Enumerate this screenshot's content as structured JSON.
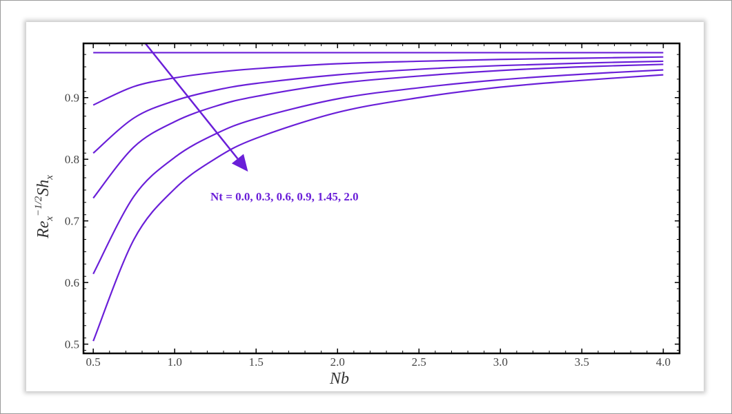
{
  "chart_data": {
    "type": "line",
    "title": "",
    "xlabel": "Nb",
    "ylabel_base": "Re",
    "ylabel_sub1": "x",
    "ylabel_sup": "−1/2",
    "ylabel_mid": "Sh",
    "ylabel_sub2": "x",
    "xlim": [
      0.44,
      4.1
    ],
    "ylim": [
      0.485,
      0.988
    ],
    "xticks": [
      0.5,
      1.0,
      1.5,
      2.0,
      2.5,
      3.0,
      3.5,
      4.0
    ],
    "xtick_labels": [
      "0.5",
      "1.0",
      "1.5",
      "2.0",
      "2.5",
      "3.0",
      "3.5",
      "4.0"
    ],
    "yticks": [
      0.5,
      0.6,
      0.7,
      0.8,
      0.9
    ],
    "ytick_labels": [
      "0.5",
      "0.6",
      "0.7",
      "0.8",
      "0.9"
    ],
    "grid": false,
    "line_color": "#6a1fd8",
    "x": [
      0.5,
      0.75,
      1.0,
      1.25,
      1.5,
      2.0,
      2.5,
      3.0,
      3.5,
      4.0
    ],
    "series": [
      {
        "values": [
          0.973,
          0.973,
          0.973,
          0.973,
          0.973,
          0.973,
          0.973,
          0.973,
          0.973,
          0.973
        ]
      },
      {
        "values": [
          0.888,
          0.918,
          0.932,
          0.941,
          0.947,
          0.955,
          0.959,
          0.962,
          0.964,
          0.966
        ]
      },
      {
        "values": [
          0.81,
          0.867,
          0.895,
          0.912,
          0.923,
          0.937,
          0.946,
          0.952,
          0.956,
          0.959
        ]
      },
      {
        "values": [
          0.737,
          0.82,
          0.861,
          0.886,
          0.902,
          0.923,
          0.935,
          0.944,
          0.95,
          0.954
        ]
      },
      {
        "values": [
          0.614,
          0.74,
          0.803,
          0.841,
          0.866,
          0.898,
          0.916,
          0.929,
          0.938,
          0.945
        ]
      },
      {
        "values": [
          0.505,
          0.67,
          0.752,
          0.801,
          0.834,
          0.876,
          0.9,
          0.917,
          0.928,
          0.937
        ]
      }
    ],
    "annotation": "Nt = 0.0, 0.3, 0.6, 0.9, 1.45, 2.0",
    "arrow": {
      "from": [
        0.82,
        0.988
      ],
      "to": [
        1.45,
        0.78
      ]
    }
  }
}
